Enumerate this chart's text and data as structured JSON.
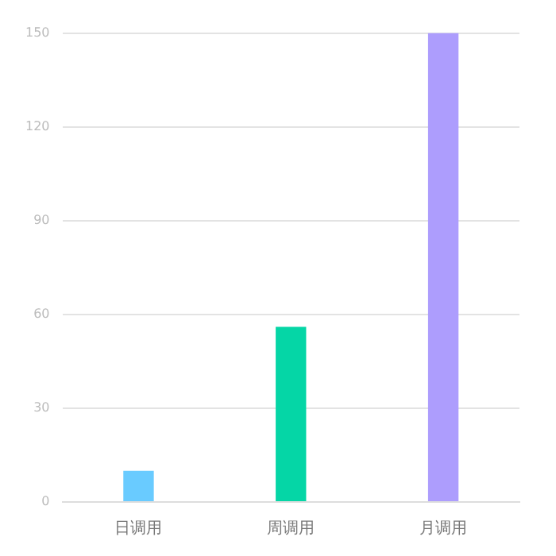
{
  "chart_data": {
    "type": "bar",
    "categories": [
      "日调用",
      "周调用",
      "月调用"
    ],
    "values": [
      10,
      56,
      150
    ],
    "colors": [
      "#69cbff",
      "#05d6a6",
      "#ad9dfd"
    ],
    "ylim": [
      0,
      150
    ],
    "yticks": [
      0,
      30,
      60,
      90,
      120,
      150
    ],
    "grid": "y"
  }
}
